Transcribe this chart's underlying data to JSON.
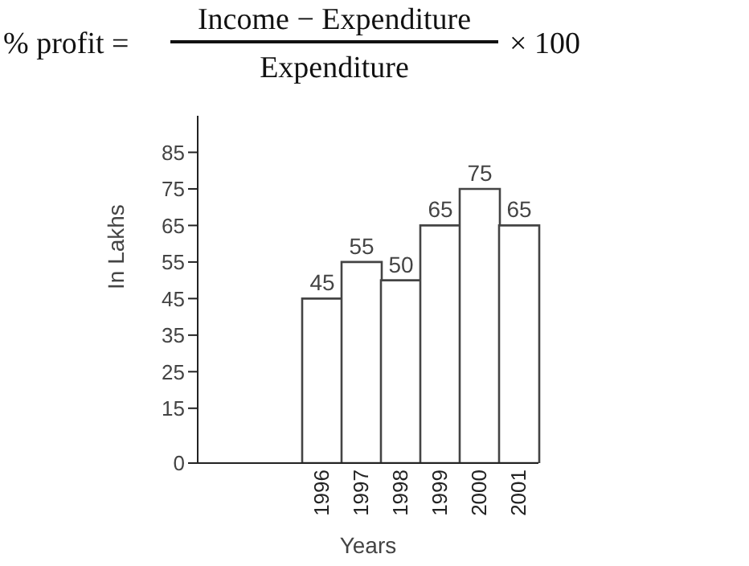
{
  "chart_data": {
    "type": "bar",
    "categories": [
      "1996",
      "1997",
      "1998",
      "1999",
      "2000",
      "2001"
    ],
    "values": [
      45,
      55,
      50,
      65,
      75,
      65
    ],
    "color": "#ffffff",
    "ylim": [
      0,
      95
    ],
    "yticks": [
      0,
      15,
      25,
      35,
      45,
      55,
      65,
      75,
      85
    ],
    "xlabel": "Years",
    "ylabel": "In Lakhs",
    "data_labels": true,
    "grid": false,
    "annotations": [
      "% profit =",
      "Income − Expenditure",
      "Expenditure",
      "× 100"
    ]
  }
}
